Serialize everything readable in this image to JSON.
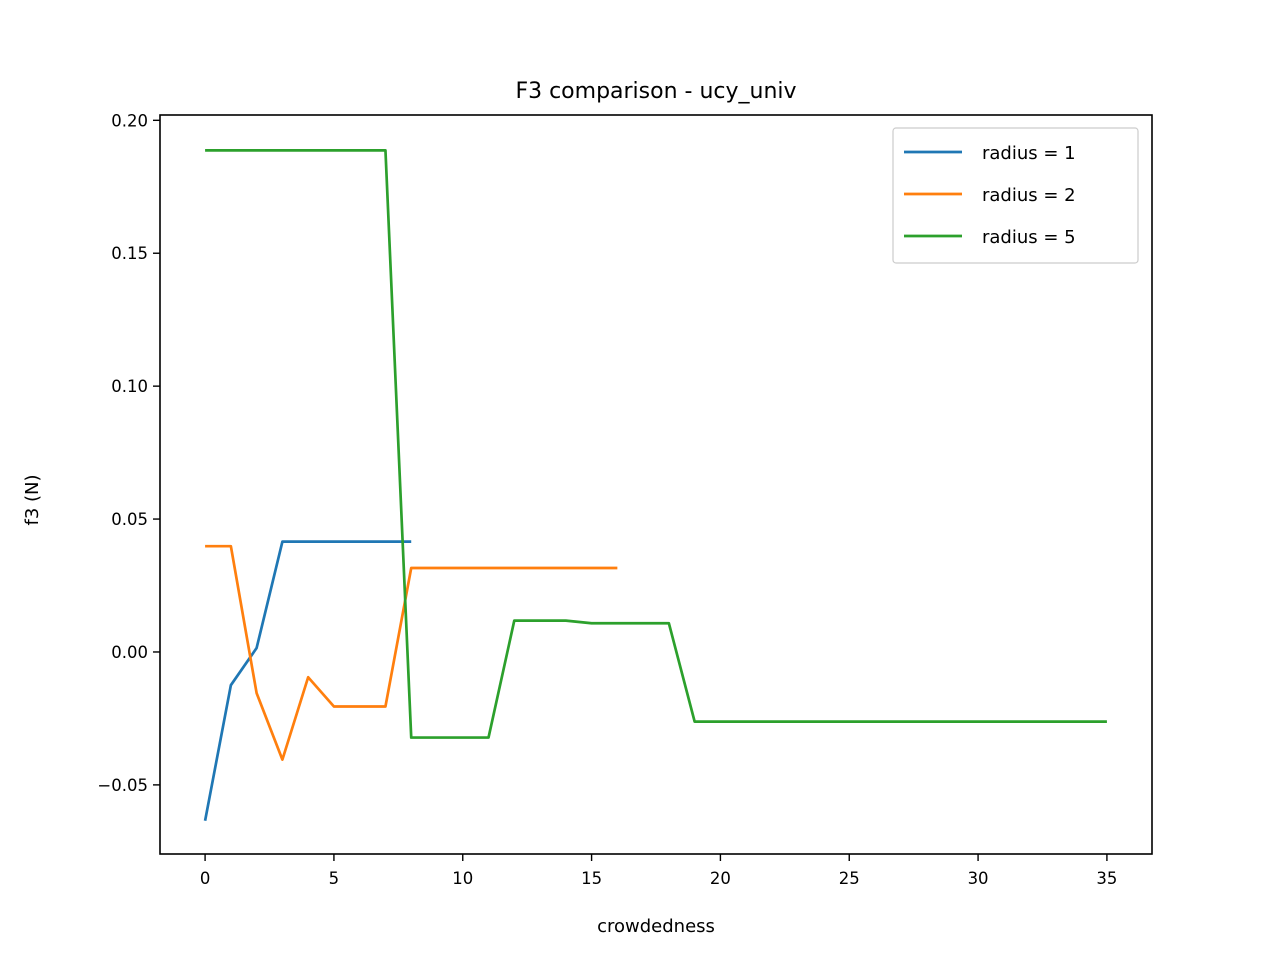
{
  "chart_data": {
    "type": "line",
    "title": "F3 comparison - ucy_univ",
    "xlabel": "crowdedness",
    "ylabel": "f3 (N)",
    "xlim": [
      -1.75,
      36.75
    ],
    "ylim": [
      -0.076,
      0.202
    ],
    "xticks": [
      0,
      5,
      10,
      15,
      20,
      25,
      30,
      35
    ],
    "xtick_labels": [
      "0",
      "5",
      "10",
      "15",
      "20",
      "25",
      "30",
      "35"
    ],
    "yticks": [
      -0.05,
      0.0,
      0.05,
      0.1,
      0.15,
      0.2
    ],
    "ytick_labels": [
      "−0.05",
      "0.00",
      "0.05",
      "0.10",
      "0.15",
      "0.20"
    ],
    "grid": false,
    "legend_position": "top-right",
    "series": [
      {
        "name": "radius = 1",
        "color": "#1f77b4",
        "x": [
          0,
          1,
          2,
          3,
          4,
          5,
          6,
          7,
          8
        ],
        "y": [
          -0.0635,
          -0.0125,
          0.0015,
          0.0415,
          0.0415,
          0.0415,
          0.0415,
          0.0415,
          0.0415
        ]
      },
      {
        "name": "radius = 2",
        "color": "#ff7f0e",
        "x": [
          0,
          1,
          2,
          3,
          4,
          5,
          6,
          7,
          8,
          9,
          10,
          11,
          12,
          13,
          14,
          15,
          16
        ],
        "y": [
          0.0398,
          0.0398,
          -0.0155,
          -0.0405,
          -0.0095,
          -0.0205,
          -0.0205,
          -0.0205,
          0.0316,
          0.0316,
          0.0316,
          0.0316,
          0.0316,
          0.0316,
          0.0316,
          0.0316,
          0.0316
        ]
      },
      {
        "name": "radius = 5",
        "color": "#2ca02c",
        "x": [
          0,
          1,
          2,
          3,
          4,
          5,
          6,
          7,
          8,
          9,
          10,
          11,
          12,
          13,
          14,
          15,
          16,
          17,
          18,
          19,
          20,
          21,
          22,
          23,
          24,
          25,
          26,
          27,
          28,
          29,
          30,
          31,
          32,
          33,
          34,
          35
        ],
        "y": [
          0.1887,
          0.1887,
          0.1887,
          0.1887,
          0.1887,
          0.1887,
          0.1887,
          0.1887,
          -0.0322,
          -0.0322,
          -0.0322,
          -0.0322,
          0.0118,
          0.0118,
          0.0118,
          0.0108,
          0.0108,
          0.0108,
          0.0108,
          -0.0262,
          -0.0262,
          -0.0262,
          -0.0262,
          -0.0262,
          -0.0262,
          -0.0262,
          -0.0262,
          -0.0262,
          -0.0262,
          -0.0262,
          -0.0262,
          -0.0262,
          -0.0262,
          -0.0262,
          -0.0262,
          -0.0262
        ]
      }
    ]
  }
}
